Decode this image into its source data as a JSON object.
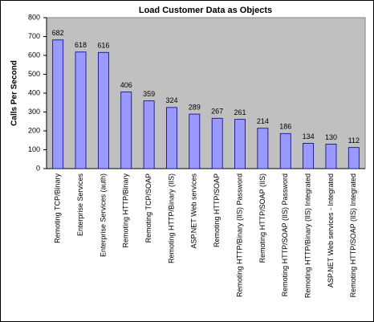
{
  "chart_data": {
    "type": "bar",
    "title": "Load Customer Data as Objects",
    "y_label": "Calls Per Second",
    "categories": [
      "Remoting TCP/Binary",
      "Enterprise Services",
      "Enterprise Services (auth)",
      "Remoting HTTP/Binary",
      "Remoting TCP/SOAP",
      "Remoting HTTP/Binary (IIS)",
      "ASP.NET Web services",
      "Remoting HTTP/SOAP",
      "Remoting HTTP/Binary (IIS) Password",
      "Remoting HTTP/SOAP (IIS)",
      "Remoting HTTP/SOAP (IIS) Password",
      "Remoting HTTP/Binary (IIS) Integrated",
      "ASP.NET Web services - Integrated",
      "Remoting HTTP/SOAP (IIS) Integrated"
    ],
    "values": [
      682,
      618,
      616,
      406,
      359,
      324,
      289,
      267,
      261,
      214,
      186,
      134,
      130,
      112
    ],
    "color": "#9999ff",
    "ylim": [
      0,
      800
    ],
    "yticks": [
      0,
      100,
      200,
      300,
      400,
      500,
      600,
      700,
      800
    ],
    "grid": false
  }
}
